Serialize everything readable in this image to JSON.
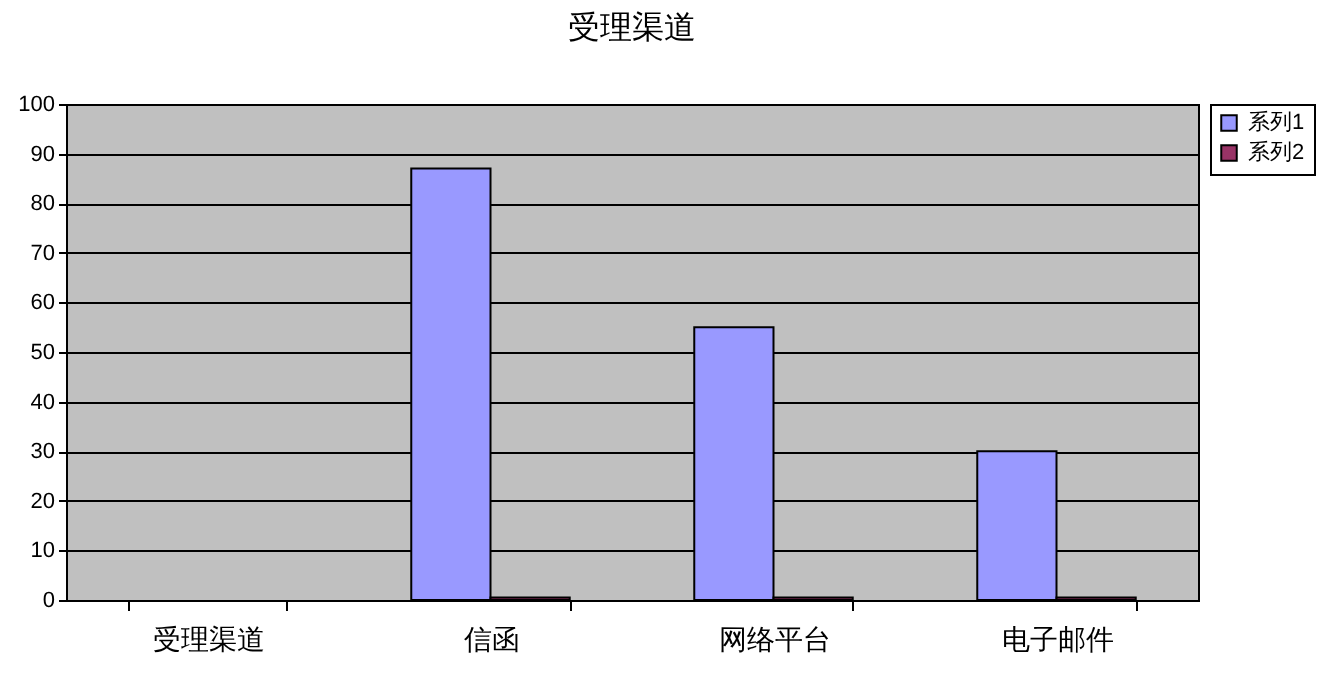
{
  "chart_data": {
    "type": "bar",
    "title": "受理渠道",
    "categories": [
      "受理渠道",
      "信函",
      "网络平台",
      "电子邮件"
    ],
    "series": [
      {
        "name": "系列1",
        "color": "#9999ff",
        "values": [
          null,
          87,
          55,
          30
        ]
      },
      {
        "name": "系列2",
        "color": "#993366",
        "values": [
          null,
          0.5,
          0.5,
          0.5
        ]
      }
    ],
    "ylim": [
      0,
      100
    ],
    "yticks": [
      0,
      10,
      20,
      30,
      40,
      50,
      60,
      70,
      80,
      90,
      100
    ],
    "grid": "y",
    "legend": "right"
  }
}
